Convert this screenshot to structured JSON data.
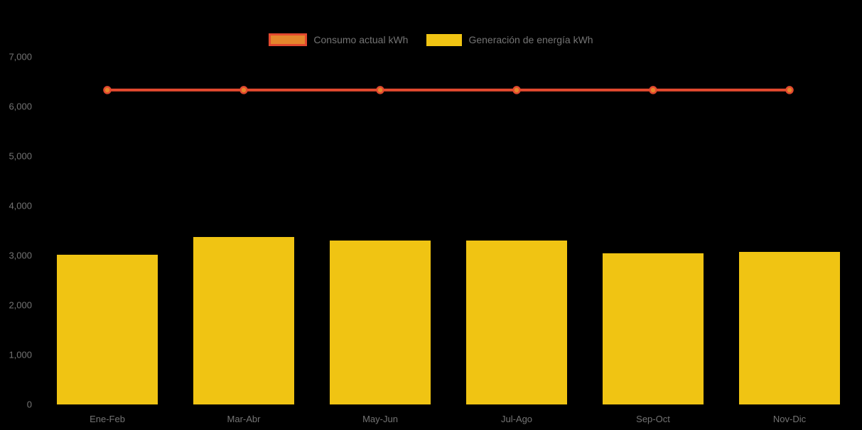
{
  "chart_data": {
    "type": "bar",
    "title": "",
    "xlabel": "",
    "ylabel": "",
    "categories": [
      "Ene-Feb",
      "Mar-Abr",
      "May-Jun",
      "Jul-Ago",
      "Sep-Oct",
      "Nov-Dic"
    ],
    "series": [
      {
        "name": "Consumo actual kWh",
        "type": "line",
        "values": [
          6330,
          6330,
          6330,
          6330,
          6330,
          6330
        ],
        "line_color": "#e3492f",
        "marker_fill": "#e5862c",
        "marker_stroke": "#e3492f"
      },
      {
        "name": "Generación de energía kWh",
        "type": "bar",
        "values": [
          3020,
          3370,
          3305,
          3295,
          3050,
          3070
        ],
        "color": "#f0c413"
      }
    ],
    "ylim": [
      0,
      7000
    ],
    "ytick_step": 1000,
    "ytick_labels": [
      "0",
      "1,000",
      "2,000",
      "3,000",
      "4,000",
      "5,000",
      "6,000",
      "7,000"
    ],
    "grid": false,
    "legend_position": "top-center",
    "background_color": "#000000",
    "text_color": "#747474"
  }
}
